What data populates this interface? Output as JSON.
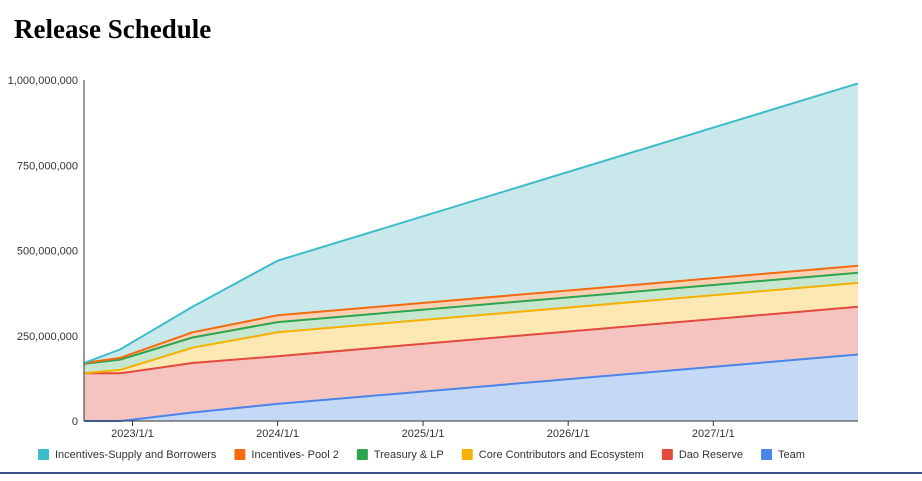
{
  "chart_data": {
    "type": "area",
    "stacked": true,
    "title": "Release Schedule",
    "xlabel": "",
    "ylabel": "",
    "x_ticks": [
      "2023/1/1",
      "2024/1/1",
      "2025/1/1",
      "2026/1/1",
      "2027/1/1"
    ],
    "y_ticks": [
      "0",
      "250,000,000",
      "500,000,000",
      "750,000,000",
      "1,000,000,000"
    ],
    "ylim": [
      0,
      1000000000
    ],
    "xlim": [
      "2022/9/1",
      "2027/12/31"
    ],
    "grid": false,
    "legend_position": "bottom",
    "x": [
      "2022/9/1",
      "2022/12/1",
      "2023/6/1",
      "2024/1/1",
      "2027/12/31"
    ],
    "series": [
      {
        "name": "Team",
        "color": "#4a86e8",
        "fill": "#c5d8f6",
        "values": [
          0,
          0,
          25000000,
          50000000,
          195000000
        ]
      },
      {
        "name": "Dao Reserve",
        "color": "#e24a3b",
        "fill": "#f5c4c0",
        "values": [
          140000000,
          140000000,
          145000000,
          140000000,
          140000000
        ]
      },
      {
        "name": "Core Contributors and Ecosystem",
        "color": "#f6b100",
        "fill": "#fde7b3",
        "values": [
          0,
          10000000,
          45000000,
          70000000,
          70000000
        ]
      },
      {
        "name": "Treasury & LP",
        "color": "#2da44e",
        "fill": "#c7e6cf",
        "values": [
          28000000,
          30000000,
          30000000,
          30000000,
          30000000
        ]
      },
      {
        "name": "Incentives- Pool 2",
        "color": "#f46a10",
        "fill": "#fbd1b5",
        "values": [
          2000000,
          5000000,
          15000000,
          20000000,
          20000000
        ]
      },
      {
        "name": "Incentives-Supply and Borrowers",
        "color": "#3fbcc9",
        "fill": "#c8e8ec",
        "values": [
          0,
          25000000,
          75000000,
          160000000,
          535000000
        ]
      }
    ]
  }
}
